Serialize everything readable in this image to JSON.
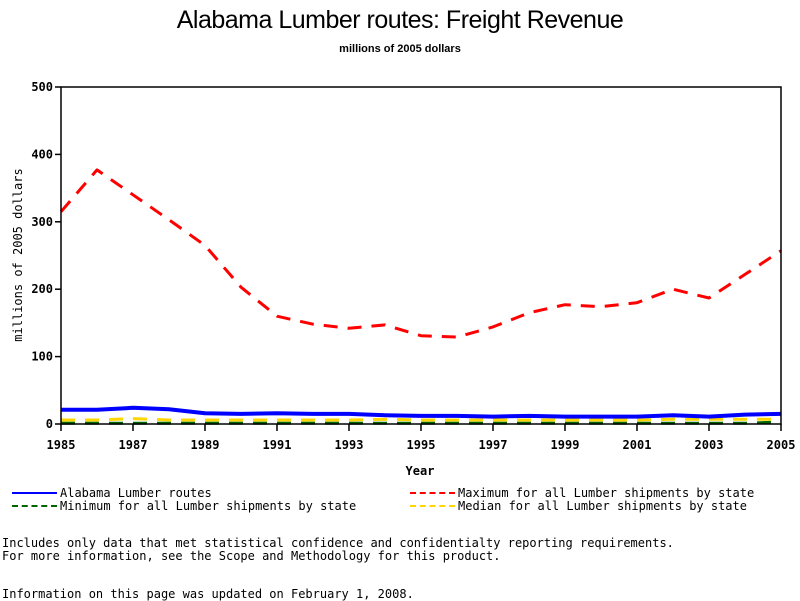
{
  "chart_data": {
    "type": "line",
    "title": "Alabama Lumber routes: Freight Revenue",
    "subtitle": "millions of 2005 dollars",
    "xlabel": "Year",
    "ylabel": "millions of 2005 dollars",
    "xlim": [
      1985,
      2005
    ],
    "ylim": [
      0,
      500
    ],
    "x": [
      1985,
      1986,
      1987,
      1988,
      1989,
      1990,
      1991,
      1992,
      1993,
      1994,
      1995,
      1996,
      1997,
      1998,
      1999,
      2000,
      2001,
      2002,
      2003,
      2004,
      2005
    ],
    "x_ticks": [
      "1985",
      "1987",
      "1989",
      "1991",
      "1993",
      "1995",
      "1997",
      "1999",
      "2001",
      "2003",
      "2005"
    ],
    "y_ticks": [
      "0",
      "100",
      "200",
      "300",
      "400",
      "500"
    ],
    "grid": false,
    "legend_position": "bottom",
    "series": [
      {
        "name": "Alabama Lumber routes",
        "color": "#0000ff",
        "style": "solid",
        "values": [
          21,
          21,
          24,
          22,
          16,
          15,
          16,
          15,
          15,
          13,
          12,
          12,
          11,
          12,
          11,
          11,
          11,
          13,
          11,
          14,
          15
        ]
      },
      {
        "name": "Maximum for all Lumber shipments by state",
        "color": "#ff0000",
        "style": "dashed",
        "values": [
          315,
          377,
          340,
          303,
          265,
          203,
          160,
          148,
          142,
          147,
          131,
          129,
          144,
          165,
          177,
          174,
          180,
          200,
          187,
          222,
          257
        ]
      },
      {
        "name": "Minimum for all Lumber shipments by state",
        "color": "#006400",
        "style": "dashed",
        "values": [
          1,
          1,
          1,
          1,
          1,
          1,
          1,
          1,
          1,
          1,
          1,
          1,
          1,
          1,
          1,
          1,
          1,
          1,
          1,
          1,
          3
        ]
      },
      {
        "name": "Median for all Lumber shipments by state",
        "color": "#ffd700",
        "style": "dashed",
        "values": [
          6,
          6,
          8,
          6,
          6,
          6,
          6,
          6,
          6,
          7,
          6,
          6,
          6,
          6,
          6,
          6,
          6,
          7,
          7,
          7,
          7
        ]
      }
    ]
  },
  "notes": {
    "line1": "Includes only data that met statistical confidence and confidentialty reporting requirements.",
    "line2": "For more information, see the Scope and Methodology for this product.",
    "updated": "Information on this page was updated on February 1, 2008."
  }
}
